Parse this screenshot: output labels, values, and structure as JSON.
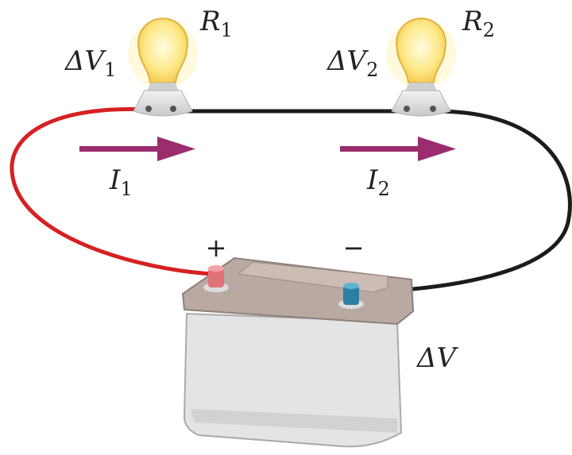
{
  "bulbs": [
    {
      "voltage": {
        "symbol": "ΔV",
        "subscript": "1"
      },
      "resistance": {
        "symbol": "R",
        "subscript": "1"
      },
      "current": {
        "symbol": "I",
        "subscript": "1"
      }
    },
    {
      "voltage": {
        "symbol": "ΔV",
        "subscript": "2"
      },
      "resistance": {
        "symbol": "R",
        "subscript": "2"
      },
      "current": {
        "symbol": "I",
        "subscript": "2"
      }
    }
  ],
  "battery": {
    "positive": "+",
    "negative": "−",
    "voltage": "ΔV"
  }
}
